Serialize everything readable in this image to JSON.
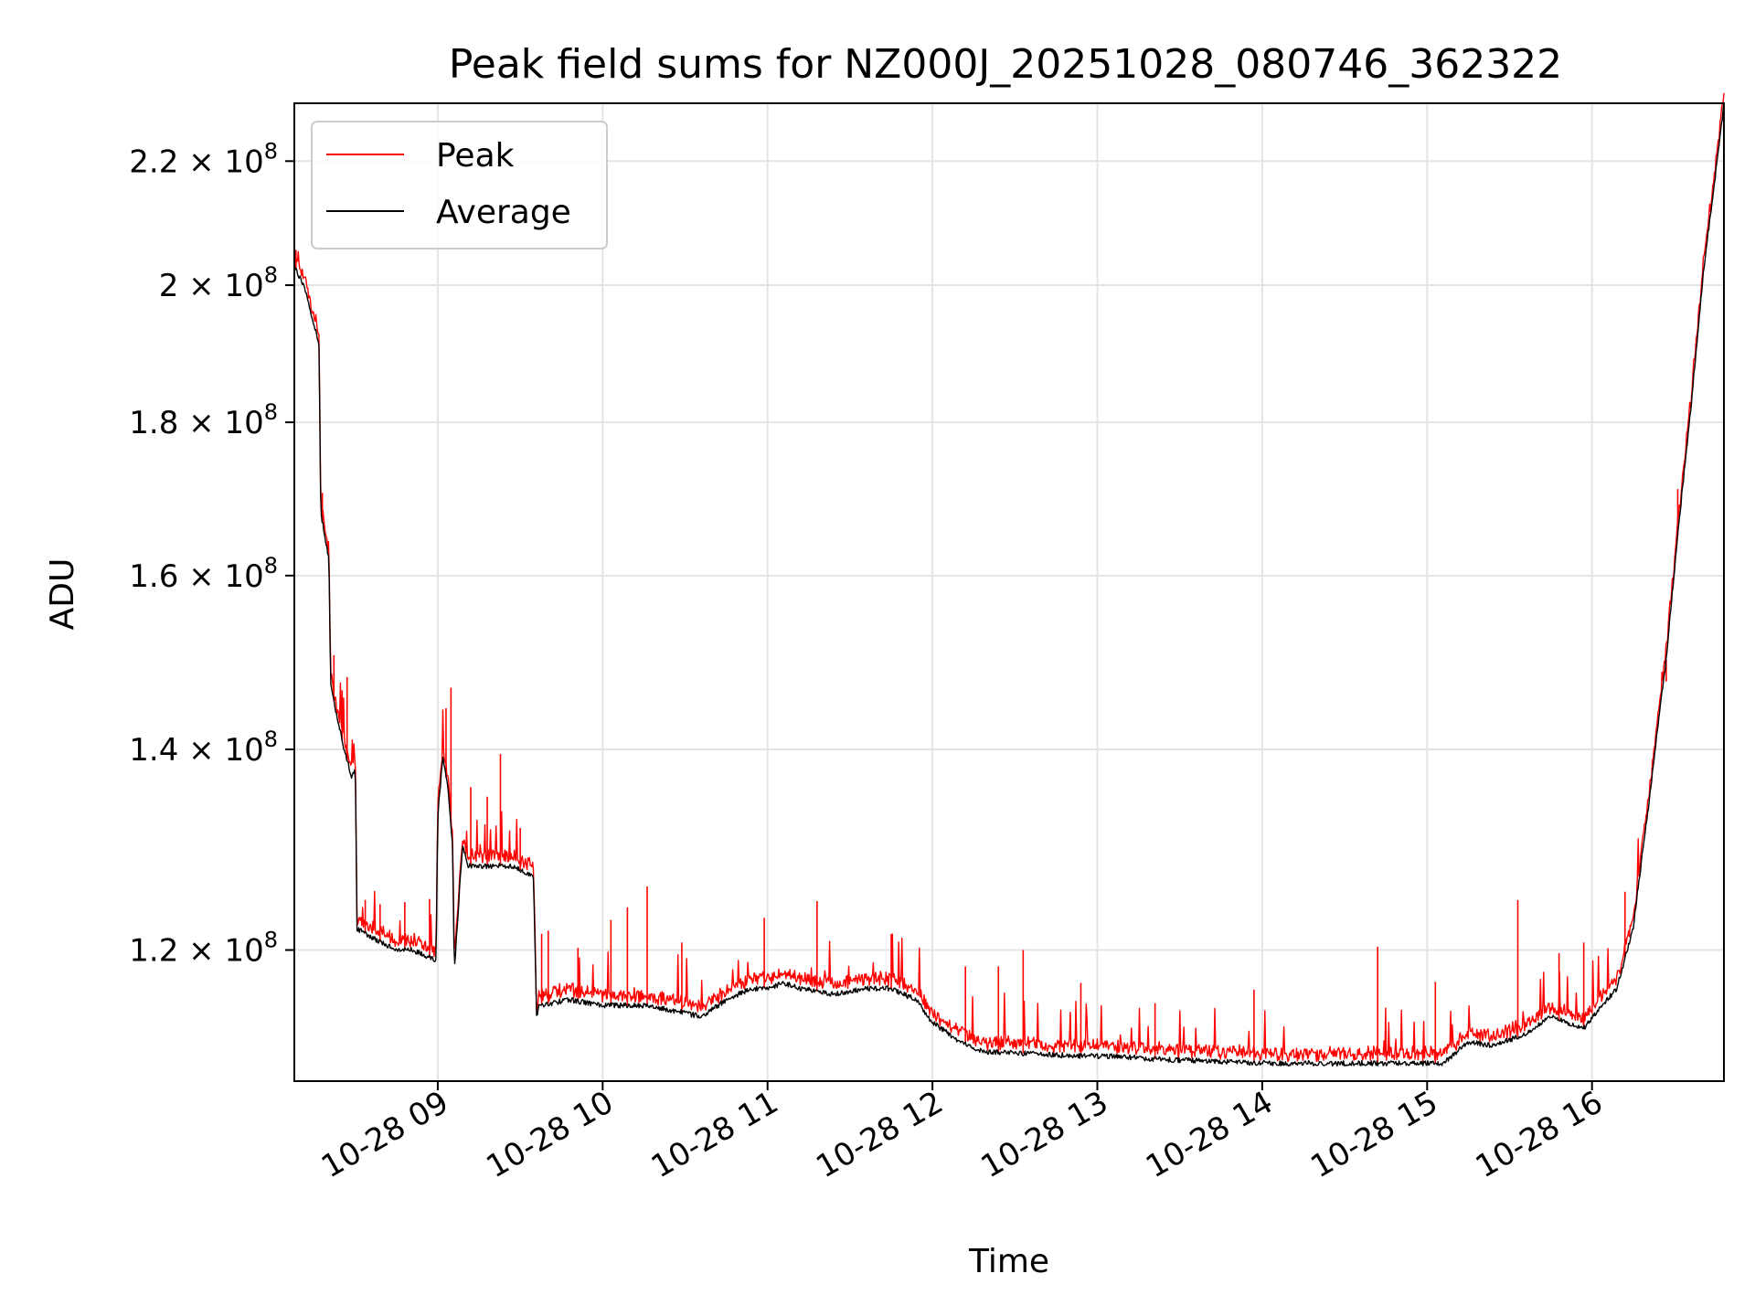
{
  "chart_data": {
    "type": "line",
    "title": "Peak field sums for NZ000J_20251028_080746_362322",
    "xlabel": "Time",
    "ylabel": "ADU",
    "yscale": "log",
    "grid": true,
    "xlim": [
      8.13,
      16.8
    ],
    "ylim": [
      108500000,
      230000000
    ],
    "x_ticks": [
      {
        "value": 9,
        "label": "10-28 09"
      },
      {
        "value": 10,
        "label": "10-28 10"
      },
      {
        "value": 11,
        "label": "10-28 11"
      },
      {
        "value": 12,
        "label": "10-28 12"
      },
      {
        "value": 13,
        "label": "10-28 13"
      },
      {
        "value": 14,
        "label": "10-28 14"
      },
      {
        "value": 15,
        "label": "10-28 15"
      },
      {
        "value": 16,
        "label": "10-28 16"
      }
    ],
    "y_ticks": [
      {
        "value": 120000000,
        "mantissa": "1.2",
        "exp": "8"
      },
      {
        "value": 140000000,
        "mantissa": "1.4",
        "exp": "8"
      },
      {
        "value": 160000000,
        "mantissa": "1.6",
        "exp": "8"
      },
      {
        "value": 180000000,
        "mantissa": "1.8",
        "exp": "8"
      },
      {
        "value": 200000000,
        "mantissa": "2",
        "exp": "8"
      },
      {
        "value": 220000000,
        "mantissa": "2.2",
        "exp": "8"
      }
    ],
    "times_symbol": "×",
    "legend": {
      "placement": "top-left"
    },
    "series": [
      {
        "name": "Peak",
        "color": "#ff0000",
        "role": "peak"
      },
      {
        "name": "Average",
        "color": "#000000",
        "role": "average"
      }
    ],
    "x_hours": [
      8.13,
      8.2,
      8.28,
      8.29,
      8.34,
      8.35,
      8.43,
      8.48,
      8.5,
      8.51,
      8.62,
      8.75,
      8.85,
      8.99,
      9.0,
      9.03,
      9.06,
      9.09,
      9.1,
      9.15,
      9.17,
      9.18,
      9.3,
      9.45,
      9.58,
      9.6,
      9.61,
      9.8,
      10.0,
      10.25,
      10.45,
      10.6,
      10.75,
      10.9,
      11.0,
      11.1,
      11.2,
      11.4,
      11.6,
      11.75,
      11.9,
      12.0,
      12.15,
      12.3,
      12.6,
      12.9,
      13.1,
      13.4,
      13.7,
      14.0,
      14.4,
      14.9,
      15.1,
      15.25,
      15.4,
      15.6,
      15.75,
      15.9,
      15.95,
      16.05,
      16.15,
      16.25,
      16.35,
      16.45,
      16.52,
      16.6,
      16.68,
      16.75,
      16.8
    ],
    "average": [
      203000000,
      199000000,
      191000000,
      168000000,
      162000000,
      147000000,
      140000000,
      137000000,
      138000000,
      122000000,
      121000000,
      120000000,
      120000000,
      119000000,
      133000000,
      139000000,
      136000000,
      130000000,
      118000000,
      130000000,
      129000000,
      128000000,
      128000000,
      128000000,
      127000000,
      113500000,
      115000000,
      115500000,
      115000000,
      115000000,
      114500000,
      114000000,
      115500000,
      116500000,
      116500000,
      117000000,
      116500000,
      116000000,
      116500000,
      116500000,
      115500000,
      113500000,
      112000000,
      111000000,
      110800000,
      110600000,
      110600000,
      110300000,
      110200000,
      110000000,
      110000000,
      110000000,
      110000000,
      111800000,
      111500000,
      112500000,
      114000000,
      113200000,
      113000000,
      114800000,
      116500000,
      122000000,
      135000000,
      150000000,
      165000000,
      182000000,
      203000000,
      218000000,
      230000000
    ],
    "peak_spikes": [
      {
        "x": 8.14,
        "y": 205500000
      },
      {
        "x": 8.3,
        "y": 170500000
      },
      {
        "x": 8.37,
        "y": 150500000
      },
      {
        "x": 8.42,
        "y": 146500000
      },
      {
        "x": 8.45,
        "y": 148000000
      },
      {
        "x": 8.56,
        "y": 124700000
      },
      {
        "x": 8.65,
        "y": 124300000
      },
      {
        "x": 8.8,
        "y": 124500000
      },
      {
        "x": 8.95,
        "y": 124800000
      },
      {
        "x": 9.05,
        "y": 144500000
      },
      {
        "x": 9.08,
        "y": 146800000
      },
      {
        "x": 9.2,
        "y": 136000000
      },
      {
        "x": 9.3,
        "y": 135000000
      },
      {
        "x": 9.38,
        "y": 139500000
      },
      {
        "x": 9.5,
        "y": 131800000
      },
      {
        "x": 9.63,
        "y": 121500000
      },
      {
        "x": 9.67,
        "y": 121800000
      },
      {
        "x": 9.85,
        "y": 120200000
      },
      {
        "x": 10.05,
        "y": 122800000
      },
      {
        "x": 10.15,
        "y": 124000000
      },
      {
        "x": 10.27,
        "y": 126000000
      },
      {
        "x": 10.48,
        "y": 120700000
      },
      {
        "x": 10.98,
        "y": 123000000
      },
      {
        "x": 11.3,
        "y": 124600000
      },
      {
        "x": 11.75,
        "y": 121500000
      },
      {
        "x": 12.2,
        "y": 118500000
      },
      {
        "x": 12.4,
        "y": 118500000
      },
      {
        "x": 12.55,
        "y": 120000000
      },
      {
        "x": 12.9,
        "y": 117000000
      },
      {
        "x": 13.35,
        "y": 115200000
      },
      {
        "x": 13.95,
        "y": 116400000
      },
      {
        "x": 14.7,
        "y": 120300000
      },
      {
        "x": 15.05,
        "y": 117100000
      },
      {
        "x": 15.55,
        "y": 124700000
      },
      {
        "x": 15.8,
        "y": 119700000
      },
      {
        "x": 15.95,
        "y": 120700000
      },
      {
        "x": 16.2,
        "y": 125500000
      },
      {
        "x": 16.45,
        "y": 147500000
      },
      {
        "x": 16.52,
        "y": 171000000
      }
    ]
  }
}
